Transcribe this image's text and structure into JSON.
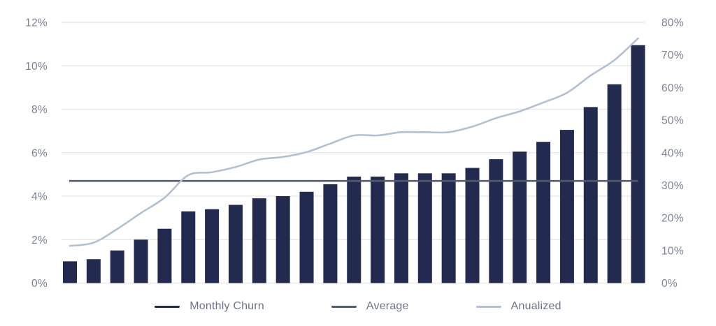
{
  "colors": {
    "background": "#ffffff",
    "grid": "#e8e9eb",
    "axis_text": "#7b8294",
    "legend_text": "#6d7487",
    "bar": "#222a50",
    "average_line": "#535b6f",
    "annualized_line": "#b1c0d2"
  },
  "legend": {
    "items": [
      {
        "label": "Monthly Churn",
        "color": "#222a50"
      },
      {
        "label": "Average",
        "color": "#535b6f"
      },
      {
        "label": "Anualized",
        "color": "#b1c0d2"
      }
    ]
  },
  "chart_data": {
    "type": "combo",
    "title": "",
    "grid": true,
    "legend_position": "bottom",
    "categories_count": 25,
    "x_tick_labels": [],
    "left_axis": {
      "min": 0,
      "max": 12,
      "ticks": [
        {
          "v": 0,
          "label": "0%"
        },
        {
          "v": 2,
          "label": "2%"
        },
        {
          "v": 4,
          "label": "4%"
        },
        {
          "v": 6,
          "label": "6%"
        },
        {
          "v": 8,
          "label": "8%"
        },
        {
          "v": 10,
          "label": "10%"
        },
        {
          "v": 12,
          "label": "12%"
        }
      ]
    },
    "right_axis": {
      "min": 0,
      "max": 80,
      "ticks": [
        {
          "v": 0,
          "label": "0%"
        },
        {
          "v": 10,
          "label": "10%"
        },
        {
          "v": 20,
          "label": "20%"
        },
        {
          "v": 30,
          "label": "30%"
        },
        {
          "v": 40,
          "label": "40%"
        },
        {
          "v": 50,
          "label": "50%"
        },
        {
          "v": 60,
          "label": "60%"
        },
        {
          "v": 70,
          "label": "70%"
        },
        {
          "v": 80,
          "label": "80%"
        }
      ]
    },
    "series": [
      {
        "name": "Monthly Churn",
        "type": "bar",
        "axis": "left",
        "color": "#222a50",
        "values": [
          1.0,
          1.1,
          1.5,
          2.0,
          2.5,
          3.3,
          3.4,
          3.6,
          3.9,
          4.0,
          4.2,
          4.55,
          4.9,
          4.9,
          5.05,
          5.05,
          5.05,
          5.3,
          5.7,
          6.05,
          6.5,
          7.05,
          8.1,
          9.15,
          10.95
        ]
      },
      {
        "name": "Average",
        "type": "line",
        "axis": "left",
        "color": "#535b6f",
        "constant_value": 4.7
      },
      {
        "name": "Anualized",
        "type": "line",
        "axis": "right",
        "color": "#b1c0d2",
        "values": [
          11.4,
          12.4,
          16.6,
          21.5,
          26.2,
          33.1,
          34.0,
          35.6,
          37.9,
          38.7,
          40.2,
          42.8,
          45.3,
          45.3,
          46.3,
          46.3,
          46.3,
          48.0,
          50.6,
          52.7,
          55.4,
          58.4,
          63.7,
          68.4,
          75.1
        ]
      }
    ]
  }
}
